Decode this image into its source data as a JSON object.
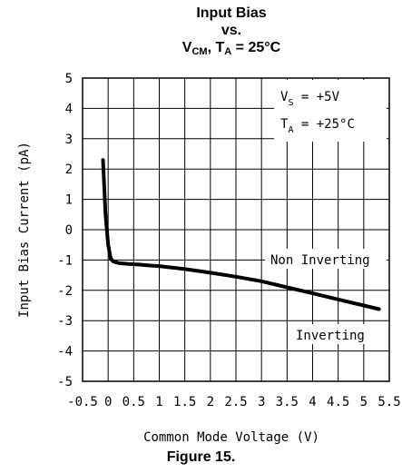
{
  "title": {
    "line1": "Input Bias",
    "line2": "vs.",
    "line3_main": "V",
    "line3_sub": "CM",
    "line3_mid": ", T",
    "line3_sub2": "A",
    "line3_end": " = 25°C"
  },
  "figure_caption": "Figure 15.",
  "conditions": {
    "vs_main": "V",
    "vs_sub": "S",
    "vs_value": " =  +5V",
    "ta_main": "T",
    "ta_sub": "A",
    "ta_value": " =  +25°C"
  },
  "chart_data": {
    "type": "line",
    "title": "Input Bias vs. VCM, TA = 25°C",
    "xlabel": "Common Mode Voltage (V)",
    "ylabel": "Input Bias Current (pA)",
    "xlim": [
      -0.5,
      5.5
    ],
    "ylim": [
      -5,
      5
    ],
    "x_ticks": [
      "-0.5",
      "0",
      "0.5",
      "1",
      "1.5",
      "2",
      "2.5",
      "3",
      "3.5",
      "4",
      "4.5",
      "5",
      "5.5"
    ],
    "y_ticks": [
      "5",
      "4",
      "3",
      "2",
      "1",
      "0",
      "-1",
      "-2",
      "-3",
      "-4",
      "-5"
    ],
    "x_tick_values": [
      -0.5,
      0,
      0.5,
      1,
      1.5,
      2,
      2.5,
      3,
      3.5,
      4,
      4.5,
      5,
      5.5
    ],
    "y_tick_values": [
      5,
      4,
      3,
      2,
      1,
      0,
      -1,
      -2,
      -3,
      -4,
      -5
    ],
    "grid": true,
    "series": [
      {
        "x": [
          -0.1,
          -0.05,
          0.0,
          0.05,
          0.1,
          0.2,
          0.4,
          0.6,
          0.8,
          1.0,
          1.5,
          2.0,
          2.5,
          3.0,
          3.5,
          4.0,
          4.5,
          5.0,
          5.3
        ],
        "y": [
          2.3,
          0.5,
          -0.5,
          -0.95,
          -1.05,
          -1.1,
          -1.13,
          -1.15,
          -1.18,
          -1.2,
          -1.3,
          -1.42,
          -1.55,
          -1.7,
          -1.9,
          -2.1,
          -2.3,
          -2.5,
          -2.62
        ]
      }
    ],
    "annotations": [
      {
        "text": "Non Inverting"
      },
      {
        "text": "Inverting"
      }
    ]
  }
}
